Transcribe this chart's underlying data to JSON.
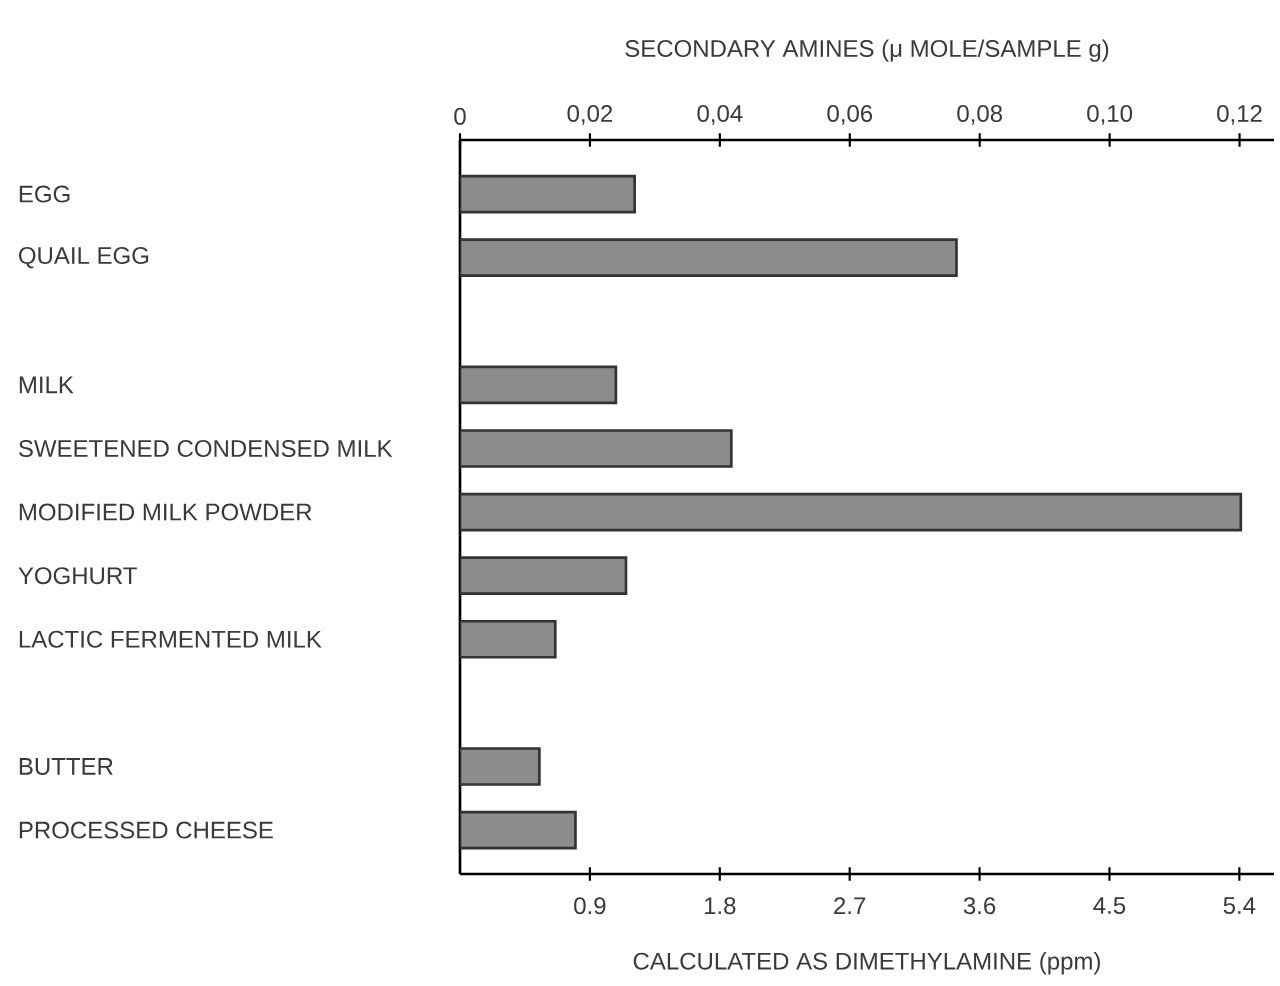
{
  "chart_data": {
    "type": "bar",
    "orientation": "horizontal",
    "categories": [
      "EGG",
      "QUAIL EGG",
      null,
      "MILK",
      "SWEETENED CONDENSED MILK",
      "MODIFIED MILK POWDER",
      "YOGHURT",
      "LACTIC FERMENTED MILK",
      null,
      "BUTTER",
      "PROCESSED CHEESE"
    ],
    "values": [
      1.21,
      3.44,
      null,
      1.08,
      1.88,
      5.41,
      1.15,
      0.66,
      null,
      0.55,
      0.8
    ],
    "color": "#8c8c8c",
    "xlim": [
      0,
      5.64
    ],
    "xticks": [
      0.9,
      1.8,
      2.7,
      3.6,
      4.5,
      5.4
    ],
    "x2lim": [
      0,
      0.1253
    ],
    "x2ticks": [
      0,
      {
        "value": 0.02,
        "label": "0,02"
      },
      {
        "value": 0.04,
        "label": "0,04"
      },
      {
        "value": 0.06,
        "label": "0,06"
      },
      {
        "value": 0.08,
        "label": "0,08"
      },
      {
        "value": 0.1,
        "label": "0,10"
      },
      {
        "value": 0.12,
        "label": "0,12"
      }
    ],
    "xlabel": "CALCULATED AS DIMETHYLAMINE (ppm)",
    "x2label": "SECONDARY AMINES (μ MOLE/SAMPLE g)"
  }
}
